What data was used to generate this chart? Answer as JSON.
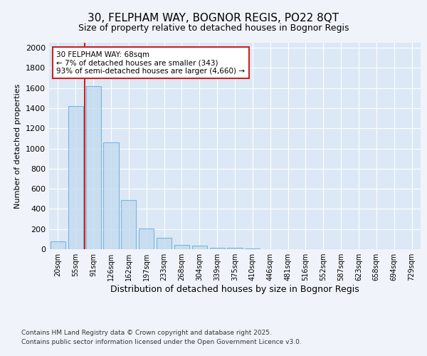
{
  "title1": "30, FELPHAM WAY, BOGNOR REGIS, PO22 8QT",
  "title2": "Size of property relative to detached houses in Bognor Regis",
  "xlabel": "Distribution of detached houses by size in Bognor Regis",
  "ylabel": "Number of detached properties",
  "categories": [
    "20sqm",
    "55sqm",
    "91sqm",
    "126sqm",
    "162sqm",
    "197sqm",
    "233sqm",
    "268sqm",
    "304sqm",
    "339sqm",
    "375sqm",
    "410sqm",
    "446sqm",
    "481sqm",
    "516sqm",
    "552sqm",
    "587sqm",
    "623sqm",
    "658sqm",
    "694sqm",
    "729sqm"
  ],
  "values": [
    80,
    1420,
    1620,
    1060,
    490,
    205,
    110,
    45,
    35,
    15,
    15,
    10,
    0,
    0,
    0,
    0,
    0,
    0,
    0,
    0,
    0
  ],
  "bar_color": "#c5ddf0",
  "bar_edge_color": "#6aacda",
  "bar_alpha": 0.85,
  "vline_x": 1.5,
  "vline_color": "#cc2222",
  "annotation_text": "30 FELPHAM WAY: 68sqm\n← 7% of detached houses are smaller (343)\n93% of semi-detached houses are larger (4,660) →",
  "annotation_box_facecolor": "#ffffff",
  "annotation_box_edgecolor": "#cc2222",
  "ylim": [
    0,
    2050
  ],
  "yticks": [
    0,
    200,
    400,
    600,
    800,
    1000,
    1200,
    1400,
    1600,
    1800,
    2000
  ],
  "footnote1": "Contains HM Land Registry data © Crown copyright and database right 2025.",
  "footnote2": "Contains public sector information licensed under the Open Government Licence v3.0.",
  "bg_color": "#f0f4fa",
  "plot_bg_color": "#dce8f5",
  "grid_color": "#ffffff",
  "title1_fontsize": 11,
  "title2_fontsize": 9,
  "xlabel_fontsize": 9,
  "ylabel_fontsize": 8,
  "xtick_fontsize": 7,
  "ytick_fontsize": 8,
  "footnote_fontsize": 6.5,
  "annot_fontsize": 7.5
}
